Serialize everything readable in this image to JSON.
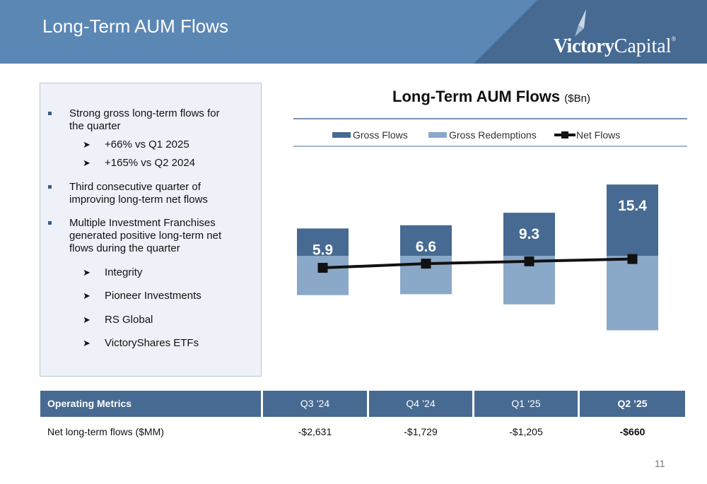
{
  "slide": {
    "title": "Long-Term AUM Flows",
    "page_number": "11",
    "colors": {
      "header": "#5b87b5",
      "dark_blue": "#466a92",
      "light_blue": "#8aa8c8",
      "panel": "#eef2f8"
    }
  },
  "logo": {
    "word_bold": "Victory",
    "word_light": "Capital",
    "reg": "®"
  },
  "bullets": [
    {
      "text_lines": [
        "Strong gross long-term flows for",
        "the quarter"
      ],
      "subs": [
        "+66% vs Q1 2025",
        "+165% vs Q2 2024"
      ]
    },
    {
      "text_lines": [
        "Third consecutive quarter of",
        "improving long-term net flows"
      ],
      "subs": []
    },
    {
      "text_lines": [
        "Multiple Investment Franchises",
        "generated positive long-term net",
        "flows during the quarter"
      ],
      "subs": [
        "Integrity",
        "Pioneer Investments",
        "RS Global",
        "VictoryShares ETFs"
      ]
    }
  ],
  "chart_data": {
    "type": "bar",
    "title": "Long-Term AUM Flows",
    "title_unit": "($Bn)",
    "legend_position": "top",
    "grid": false,
    "categories": [
      "Q3 '24",
      "Q4 '24",
      "Q1 '25",
      "Q2 '25"
    ],
    "series": [
      {
        "name": "Gross Flows",
        "values": [
          5.9,
          6.6,
          9.3,
          15.4
        ],
        "color": "#466a92"
      },
      {
        "name": "Gross Redemptions",
        "values": [
          -8.5,
          -8.3,
          -10.5,
          -16.1
        ],
        "color": "#8aa8c8"
      },
      {
        "name": "Net Flows",
        "values": [
          -2.6,
          -1.7,
          -1.2,
          -0.7
        ],
        "color": "#111111"
      }
    ],
    "data_labels": [
      "5.9",
      "6.6",
      "9.3",
      "15.4"
    ],
    "ylim": [
      -17,
      16
    ]
  },
  "table": {
    "header": [
      "Operating Metrics",
      "Q3 ’24",
      "Q4 ’24",
      "Q1 ‘25",
      "Q2 ’25"
    ],
    "row_label": "Net long-term flows ($MM)",
    "values": [
      "-$2,631",
      "-$1,729",
      "-$1,205",
      "-$660"
    ]
  }
}
